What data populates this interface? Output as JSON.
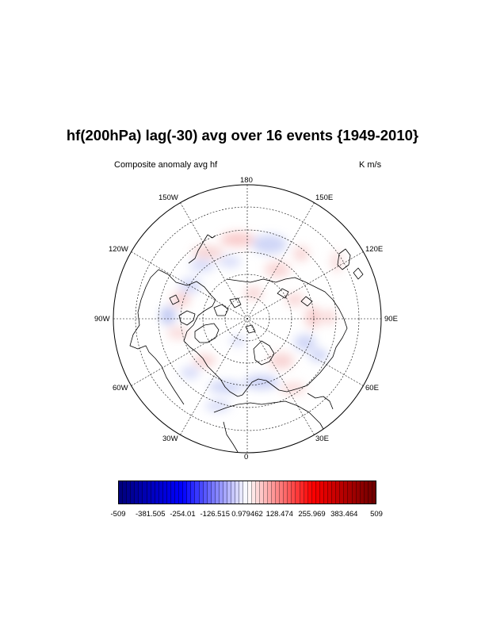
{
  "title": "hf(200hPa) lag(-30) avg over 16 events {1949-2010}",
  "left_label": "Composite anomaly avg hf",
  "right_label": "K m/s",
  "lon_labels": {
    "deg180": "180",
    "deg150e": "150E",
    "deg120e": "120E",
    "deg90e": "90E",
    "deg60e": "60E",
    "deg30e": "30E",
    "deg0": "0",
    "deg30w": "30W",
    "deg60w": "60W",
    "deg90w": "90W",
    "deg120w": "120W",
    "deg150w": "150W"
  },
  "colorbar": {
    "labels": [
      "-509",
      "-381.505",
      "-254.01",
      "-126.515",
      "0.979462",
      "128.474",
      "255.969",
      "383.464",
      "509"
    ],
    "min": -509,
    "max": 509,
    "colors": {
      "low": "#00007a",
      "mid_low": "#0000ff",
      "mid": "#ffffff",
      "mid_high": "#ff0000",
      "high": "#6b0000"
    }
  }
}
